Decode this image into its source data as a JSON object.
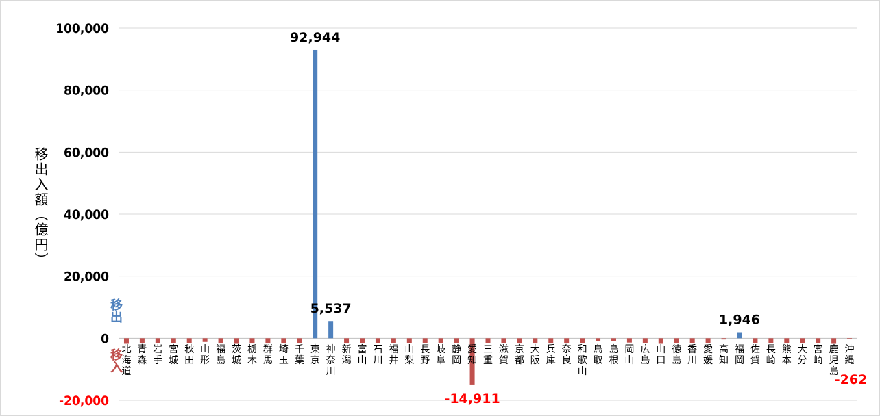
{
  "colors": {
    "outflow": "#4f81bd",
    "inflow": "#c0504d",
    "inflow_label": "#ff0000",
    "grid": "#d9d9d9"
  },
  "labels": {
    "outflow": "移出",
    "inflow": "移入"
  },
  "chart_data": {
    "type": "bar",
    "ylabel": "移出入額（億円）",
    "ylim": [
      -20000,
      100000
    ],
    "yticks": [
      -20000,
      0,
      20000,
      40000,
      60000,
      80000,
      100000
    ],
    "ytick_labels": [
      "-20,000",
      "0",
      "20,000",
      "40,000",
      "60,000",
      "80,000",
      "100,000"
    ],
    "grid": true,
    "categories": [
      "北海道",
      "青森",
      "岩手",
      "宮城",
      "秋田",
      "山形",
      "福島",
      "茨城",
      "栃木",
      "群馬",
      "埼玉",
      "千葉",
      "東京",
      "神奈川",
      "新潟",
      "富山",
      "石川",
      "福井",
      "山梨",
      "長野",
      "岐阜",
      "静岡",
      "愛知",
      "三重",
      "滋賀",
      "京都",
      "大阪",
      "兵庫",
      "奈良",
      "和歌山",
      "鳥取",
      "島根",
      "岡山",
      "広島",
      "山口",
      "徳島",
      "香川",
      "愛媛",
      "高知",
      "福岡",
      "佐賀",
      "長崎",
      "熊本",
      "大分",
      "宮崎",
      "鹿児島",
      "沖縄"
    ],
    "values": [
      -1800,
      -1600,
      -1500,
      -1600,
      -1500,
      -1200,
      -1700,
      -1800,
      -1700,
      -1700,
      -1700,
      -1600,
      92944,
      5537,
      -1700,
      -1500,
      -1500,
      -1500,
      -1500,
      -1600,
      -1600,
      -1600,
      -14911,
      -1500,
      -1500,
      -1700,
      -1700,
      -1700,
      -1600,
      -1500,
      -1000,
      -1000,
      -1400,
      -1600,
      -1800,
      -1700,
      -1600,
      -1600,
      -400,
      1946,
      -1500,
      -1500,
      -1500,
      -1500,
      -1500,
      -1800,
      -262
    ],
    "data_labels": [
      {
        "category": "東京",
        "text": "92,944"
      },
      {
        "category": "神奈川",
        "text": "5,537"
      },
      {
        "category": "愛知",
        "text": "-14,911"
      },
      {
        "category": "福岡",
        "text": "1,946"
      },
      {
        "category": "沖縄",
        "text": "-262"
      }
    ]
  }
}
